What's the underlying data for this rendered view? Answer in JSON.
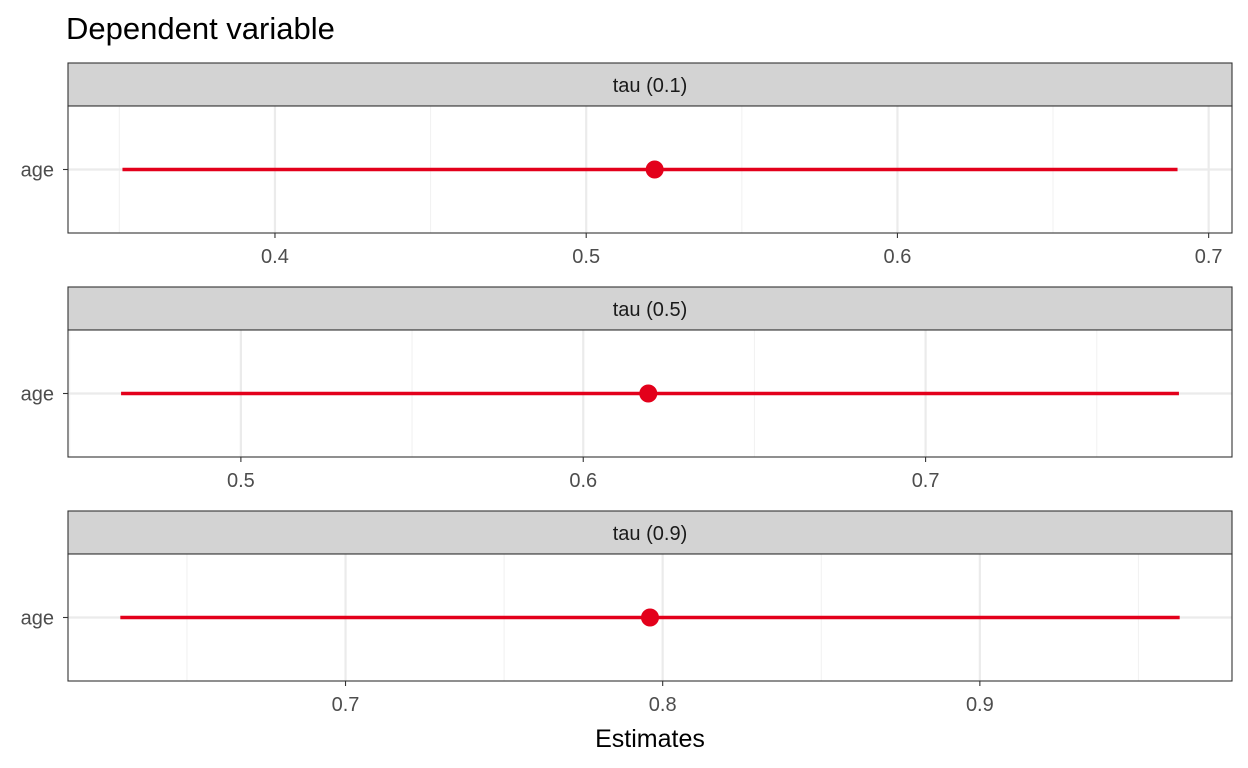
{
  "chart_data": {
    "type": "forest",
    "title": "Dependent variable",
    "xlabel": "Estimates",
    "ylabel": "",
    "grid": true,
    "legend": "none",
    "colors": {
      "estimate": "#e3001b",
      "strip_fill": "#d3d3d3",
      "grid_major": "#ebebeb",
      "grid_minor": "#f2f2f2",
      "panel_border": "#333333"
    },
    "panels": [
      {
        "strip": "tau (0.1)",
        "category": "age",
        "estimate": 0.522,
        "ci": [
          0.351,
          0.69
        ],
        "xlim": [
          0.3335,
          0.7075
        ],
        "ticks": [
          0.4,
          0.5,
          0.6,
          0.7
        ],
        "tick_labels": [
          "0.4",
          "0.5",
          "0.6",
          "0.7"
        ]
      },
      {
        "strip": "tau (0.5)",
        "category": "age",
        "estimate": 0.619,
        "ci": [
          0.465,
          0.774
        ],
        "xlim": [
          0.4495,
          0.7895
        ],
        "ticks": [
          0.5,
          0.6,
          0.7
        ],
        "tick_labels": [
          "0.5",
          "0.6",
          "0.7"
        ]
      },
      {
        "strip": "tau (0.9)",
        "category": "age",
        "estimate": 0.796,
        "ci": [
          0.629,
          0.963
        ],
        "xlim": [
          0.6125,
          0.9795
        ],
        "ticks": [
          0.7,
          0.8,
          0.9
        ],
        "tick_labels": [
          "0.7",
          "0.8",
          "0.9"
        ]
      }
    ]
  }
}
